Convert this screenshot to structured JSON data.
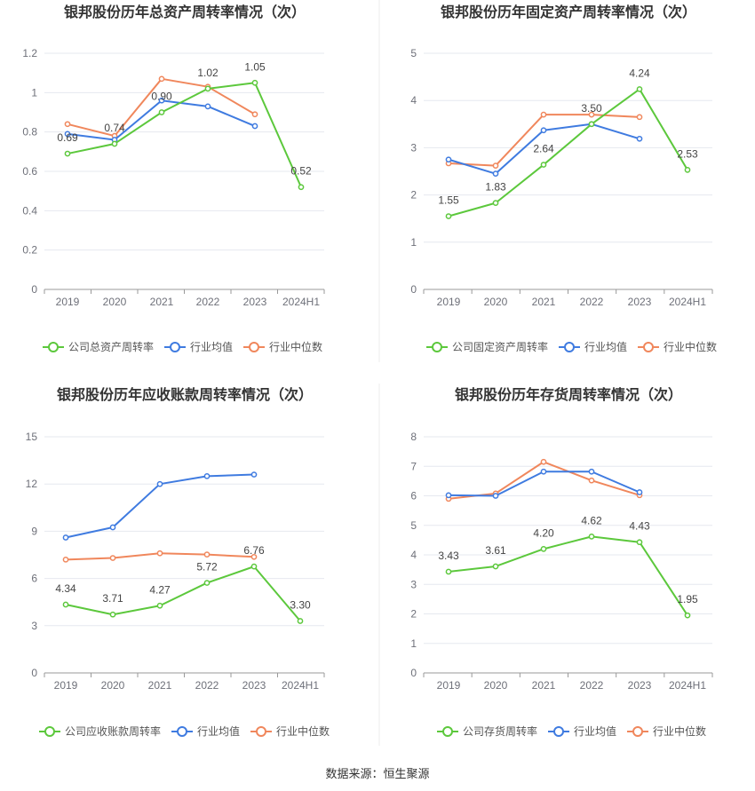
{
  "colors": {
    "company": "#5cc83c",
    "average": "#3f7be0",
    "median": "#f0875c",
    "grid": "#e6e8ef",
    "axis": "#999999"
  },
  "source": "数据来源：恒生聚源",
  "chart_data": [
    {
      "type": "line",
      "title": "银邦股份历年总资产周转率情况（次）",
      "categories": [
        "2019",
        "2020",
        "2021",
        "2022",
        "2023",
        "2024H1"
      ],
      "ylim": [
        0,
        1.2
      ],
      "yticks": [
        "0",
        "0.2",
        "0.4",
        "0.6",
        "0.8",
        "1",
        "1.2"
      ],
      "series": [
        {
          "name": "公司总资产周转率",
          "key": "company",
          "values": [
            0.69,
            0.74,
            0.9,
            1.02,
            1.05,
            0.52
          ],
          "labels": [
            "0.69",
            "0.74",
            "0.90",
            "1.02",
            "1.05",
            "0.52"
          ]
        },
        {
          "name": "行业均值",
          "key": "average",
          "values": [
            0.79,
            0.76,
            0.96,
            0.93,
            0.83,
            null
          ]
        },
        {
          "name": "行业中位数",
          "key": "median",
          "values": [
            0.84,
            0.78,
            1.07,
            1.03,
            0.89,
            null
          ]
        }
      ]
    },
    {
      "type": "line",
      "title": "银邦股份历年固定资产周转率情况（次）",
      "categories": [
        "2019",
        "2020",
        "2021",
        "2022",
        "2023",
        "2024H1"
      ],
      "ylim": [
        0,
        5
      ],
      "yticks": [
        "0",
        "1",
        "2",
        "3",
        "4",
        "5"
      ],
      "series": [
        {
          "name": "公司固定资产周转率",
          "key": "company",
          "values": [
            1.55,
            1.83,
            2.64,
            3.5,
            4.24,
            2.53
          ],
          "labels": [
            "1.55",
            "1.83",
            "2.64",
            "3.50",
            "4.24",
            "2.53"
          ]
        },
        {
          "name": "行业均值",
          "key": "average",
          "values": [
            2.75,
            2.45,
            3.37,
            3.5,
            3.19,
            null
          ]
        },
        {
          "name": "行业中位数",
          "key": "median",
          "values": [
            2.67,
            2.62,
            3.7,
            3.7,
            3.65,
            null
          ]
        }
      ]
    },
    {
      "type": "line",
      "title": "银邦股份历年应收账款周转率情况（次）",
      "categories": [
        "2019",
        "2020",
        "2021",
        "2022",
        "2023",
        "2024H1"
      ],
      "ylim": [
        0,
        15
      ],
      "yticks": [
        "0",
        "3",
        "6",
        "9",
        "12",
        "15"
      ],
      "series": [
        {
          "name": "公司应收账款周转率",
          "key": "company",
          "values": [
            4.34,
            3.71,
            4.27,
            5.72,
            6.76,
            3.3
          ],
          "labels": [
            "4.34",
            "3.71",
            "4.27",
            "5.72",
            "6.76",
            "3.30"
          ]
        },
        {
          "name": "行业均值",
          "key": "average",
          "values": [
            8.6,
            9.25,
            12.0,
            12.5,
            12.6,
            null
          ]
        },
        {
          "name": "行业中位数",
          "key": "median",
          "values": [
            7.2,
            7.3,
            7.6,
            7.52,
            7.37,
            null
          ]
        }
      ]
    },
    {
      "type": "line",
      "title": "银邦股份历年存货周转率情况（次）",
      "categories": [
        "2019",
        "2020",
        "2021",
        "2022",
        "2023",
        "2024H1"
      ],
      "ylim": [
        0,
        8
      ],
      "yticks": [
        "0",
        "1",
        "2",
        "3",
        "4",
        "5",
        "6",
        "7",
        "8"
      ],
      "series": [
        {
          "name": "公司存货周转率",
          "key": "company",
          "values": [
            3.43,
            3.61,
            4.2,
            4.62,
            4.43,
            1.95
          ],
          "labels": [
            "3.43",
            "3.61",
            "4.20",
            "4.62",
            "4.43",
            "1.95"
          ]
        },
        {
          "name": "行业均值",
          "key": "average",
          "values": [
            6.02,
            6.0,
            6.82,
            6.82,
            6.12,
            null
          ]
        },
        {
          "name": "行业中位数",
          "key": "median",
          "values": [
            5.9,
            6.08,
            7.15,
            6.52,
            6.02,
            null
          ]
        }
      ]
    }
  ]
}
